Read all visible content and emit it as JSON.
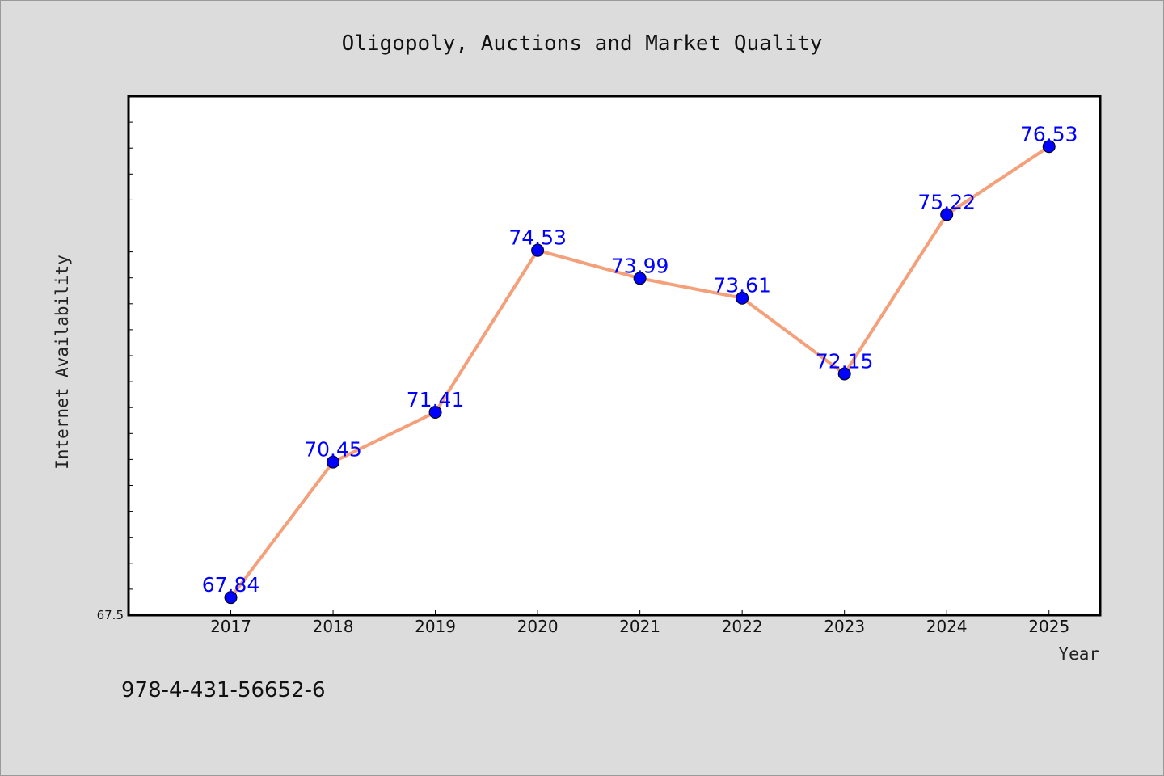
{
  "chart_data": {
    "type": "line",
    "title": "Oligopoly, Auctions and Market Quality",
    "xlabel": "Year",
    "ylabel": "Internet Availability",
    "categories": [
      "2017",
      "2018",
      "2019",
      "2020",
      "2021",
      "2022",
      "2023",
      "2024",
      "2025"
    ],
    "series": [
      {
        "values": [
          67.84,
          70.45,
          71.41,
          74.53,
          73.99,
          73.61,
          72.15,
          75.22,
          76.53
        ],
        "labels": [
          "67.84",
          "70.45",
          "71.41",
          "74.53",
          "73.99",
          "73.61",
          "72.15",
          "75.22",
          "76.53"
        ],
        "line_color": "#f4a07a",
        "marker_color": "#0000ff"
      }
    ],
    "ylim": [
      67.5,
      77.5
    ],
    "xlim_categories": [
      2016,
      2025.5
    ],
    "y_tick_labels_shown": [
      "67.5"
    ],
    "y_tick_label_min": "67.5",
    "grid": false,
    "legend": "none"
  },
  "footer": {
    "isbn": "978-4-431-56652-6"
  },
  "colors": {
    "background": "#dcdcdc",
    "plot_background": "#ffffff",
    "line": "#f4a07a",
    "markers": "#0000ff",
    "data_labels": "#0000ff"
  }
}
